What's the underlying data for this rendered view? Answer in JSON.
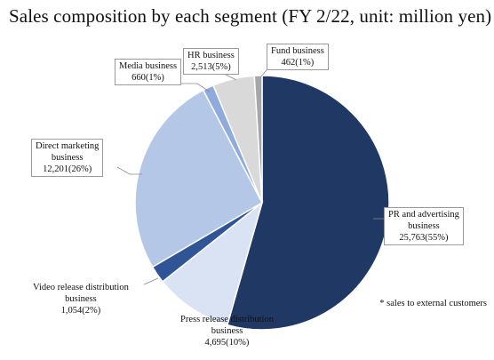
{
  "chart_data": {
    "type": "pie",
    "title": "Sales composition by each segment (FY 2/22, unit: million yen)",
    "footnote": "* sales to external customers",
    "slices": [
      {
        "label": "PR and advertising business",
        "value": 25763,
        "percent": "55%",
        "value_text": "25,763(55%)",
        "color": "#1f3864"
      },
      {
        "label": "Press release distribution business",
        "value": 4695,
        "percent": "10%",
        "value_text": "4,695(10%)",
        "color": "#dae3f3"
      },
      {
        "label": "Video release distribution business",
        "value": 1054,
        "percent": "2%",
        "value_text": "1,054(2%)",
        "color": "#2f5597"
      },
      {
        "label": "Direct marketing business",
        "value": 12201,
        "percent": "26%",
        "value_text": "12,201(26%)",
        "color": "#b4c7e7"
      },
      {
        "label": "Media business",
        "value": 660,
        "percent": "1%",
        "value_text": "660(1%)",
        "color": "#8faadc"
      },
      {
        "label": "HR business",
        "value": 2513,
        "percent": "5%",
        "value_text": "2,513(5%)",
        "color": "#d9d9d9"
      },
      {
        "label": "Fund business",
        "value": 462,
        "percent": "1%",
        "value_text": "462(1%)",
        "color": "#a6a6a6"
      }
    ]
  },
  "labels": {
    "pr": {
      "l1": "PR and advertising",
      "l2": "business",
      "l3": "25,763(55%)"
    },
    "press": {
      "l1": "Press release distribution",
      "l2": "business",
      "l3": "4,695(10%)"
    },
    "video": {
      "l1": "Video release distribution",
      "l2": "business",
      "l3": "1,054(2%)"
    },
    "direct": {
      "l1": "Direct marketing",
      "l2": "business",
      "l3": "12,201(26%)"
    },
    "media": {
      "l1": "Media business",
      "l2": "660(1%)"
    },
    "hr": {
      "l1": "HR business",
      "l2": "2,513(5%)"
    },
    "fund": {
      "l1": "Fund business",
      "l2": "462(1%)"
    }
  }
}
